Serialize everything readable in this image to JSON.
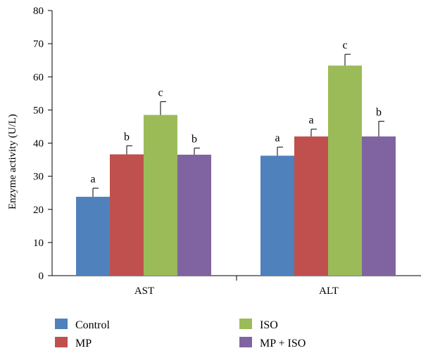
{
  "chart_data": {
    "type": "bar",
    "ylabel": "Enzyme activity (U/L)",
    "xlabel": "",
    "ylim": [
      0,
      80
    ],
    "yticks": [
      0,
      10,
      20,
      30,
      40,
      50,
      60,
      70,
      80
    ],
    "categories": [
      "AST",
      "ALT"
    ],
    "series": [
      {
        "name": "Control",
        "color": "#4f81bd",
        "values": [
          23.8,
          36.2
        ],
        "errors": [
          2.6,
          2.6
        ],
        "labels": [
          "a",
          "a"
        ]
      },
      {
        "name": "MP",
        "color": "#c0504d",
        "values": [
          36.6,
          42.0
        ],
        "errors": [
          2.6,
          2.2
        ],
        "labels": [
          "b",
          "a"
        ]
      },
      {
        "name": "ISO",
        "color": "#9bbb59",
        "values": [
          48.5,
          63.4
        ],
        "errors": [
          4.0,
          3.4
        ],
        "labels": [
          "c",
          "c"
        ]
      },
      {
        "name": "MP + ISO",
        "color": "#8064a2",
        "values": [
          36.5,
          42.0
        ],
        "errors": [
          2.0,
          4.6
        ],
        "labels": [
          "b",
          "b"
        ]
      }
    ],
    "grid": false,
    "legend_position": "bottom"
  }
}
